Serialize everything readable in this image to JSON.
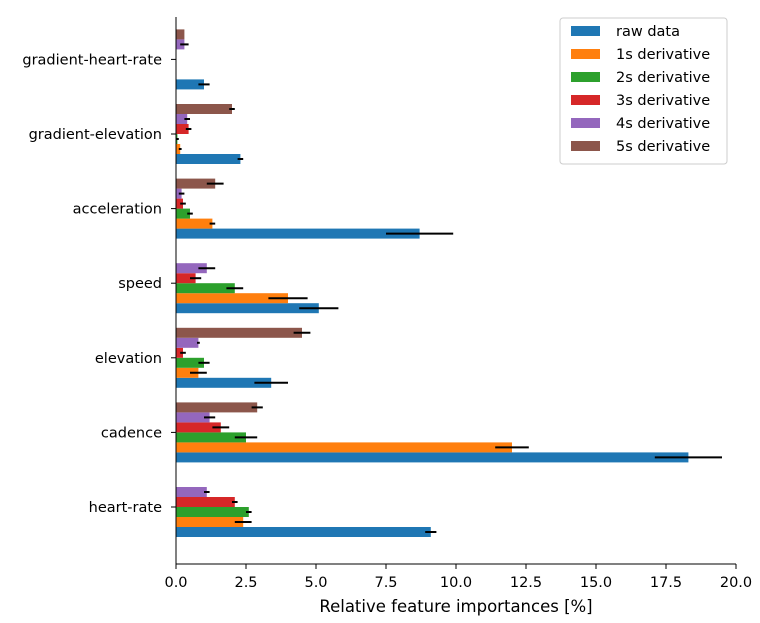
{
  "chart_data": {
    "type": "bar",
    "orientation": "horizontal",
    "categories": [
      "heart-rate",
      "cadence",
      "elevation",
      "speed",
      "acceleration",
      "gradient-elevation",
      "gradient-heart-rate"
    ],
    "series": [
      {
        "name": "raw data",
        "color": "#1f77b4",
        "values": [
          9.1,
          18.3,
          3.4,
          5.1,
          8.7,
          2.3,
          1.0
        ],
        "errors": [
          0.2,
          1.2,
          0.6,
          0.7,
          1.2,
          0.1,
          0.2
        ]
      },
      {
        "name": "1s derivative",
        "color": "#ff7f0e",
        "values": [
          2.4,
          12.0,
          0.8,
          4.0,
          1.3,
          0.15,
          0.0
        ],
        "errors": [
          0.3,
          0.6,
          0.3,
          0.7,
          0.1,
          0.05,
          0.0
        ]
      },
      {
        "name": "2s derivative",
        "color": "#2ca02c",
        "values": [
          2.6,
          2.5,
          1.0,
          2.1,
          0.5,
          0.05,
          0.0
        ],
        "errors": [
          0.1,
          0.4,
          0.2,
          0.3,
          0.1,
          0.05,
          0.0
        ]
      },
      {
        "name": "3s derivative",
        "color": "#d62728",
        "values": [
          2.1,
          1.6,
          0.25,
          0.7,
          0.25,
          0.45,
          0.0
        ],
        "errors": [
          0.1,
          0.3,
          0.1,
          0.2,
          0.1,
          0.1,
          0.0
        ]
      },
      {
        "name": "4s derivative",
        "color": "#9467bd",
        "values": [
          1.1,
          1.2,
          0.8,
          1.1,
          0.2,
          0.4,
          0.3
        ],
        "errors": [
          0.1,
          0.2,
          0.05,
          0.3,
          0.1,
          0.1,
          0.15
        ]
      },
      {
        "name": "5s derivative",
        "color": "#8c564b",
        "values": [
          0.0,
          2.9,
          4.5,
          0.0,
          1.4,
          2.0,
          0.3
        ],
        "errors": [
          0.0,
          0.2,
          0.3,
          0.0,
          0.3,
          0.1,
          0.0
        ]
      }
    ],
    "xlabel": "Relative feature importances [%]",
    "ylabel": "",
    "xlim": [
      0.0,
      20.0
    ],
    "xticks": [
      "0.0",
      "2.5",
      "5.0",
      "7.5",
      "10.0",
      "12.5",
      "15.0",
      "17.5",
      "20.0"
    ],
    "legend_position": "top-right",
    "grid": false
  }
}
